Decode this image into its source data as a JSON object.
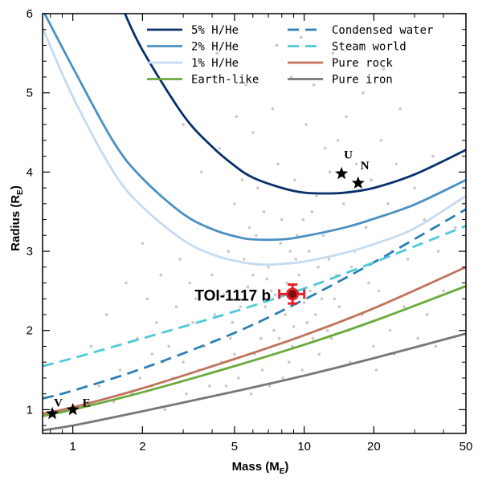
{
  "colors": {
    "h5": "#08306b",
    "h2": "#4a90c2",
    "h1": "#c6dbef",
    "earth": "#6aaa3c",
    "water": "#2a7fb5",
    "steam": "#4ec8d8",
    "rock": "#c0735a",
    "iron": "#777777",
    "background_points": "#c8c8c8",
    "planet": "#e8202a"
  },
  "chart_data": {
    "type": "line",
    "xlabel": "Mass (M",
    "xlabel_sub": "E",
    "xlabel_close": ")",
    "ylabel": "Radius (R",
    "ylabel_sub": "E",
    "ylabel_close": ")",
    "xscale": "log",
    "xlim": [
      0.74,
      50
    ],
    "ylim": [
      0.7,
      6
    ],
    "xticks": [
      1,
      2,
      5,
      10,
      20,
      50
    ],
    "xtick_labels": [
      "1",
      "2",
      "5",
      "10",
      "20",
      "50"
    ],
    "yticks": [
      1,
      2,
      3,
      4,
      5,
      6
    ],
    "ytick_labels": [
      "1",
      "2",
      "3",
      "4",
      "5",
      "6"
    ],
    "series": [
      {
        "name": "5% H/He",
        "style": "solid",
        "color_key": "h5",
        "x": [
          1.65,
          2,
          3,
          4,
          5,
          6,
          8,
          10,
          12.5,
          15,
          20,
          30,
          50
        ],
        "y": [
          6.05,
          5.54,
          4.72,
          4.32,
          4.08,
          3.93,
          3.8,
          3.74,
          3.73,
          3.74,
          3.8,
          3.97,
          4.28
        ]
      },
      {
        "name": "2% H/He",
        "style": "solid",
        "color_key": "h2",
        "x": [
          0.74,
          1,
          1.5,
          2,
          3,
          4,
          5,
          6,
          8,
          10,
          15,
          20,
          30,
          50
        ],
        "y": [
          6.05,
          5.32,
          4.38,
          3.92,
          3.47,
          3.28,
          3.19,
          3.15,
          3.15,
          3.19,
          3.3,
          3.41,
          3.59,
          3.9
        ]
      },
      {
        "name": "1% H/He",
        "style": "solid",
        "color_key": "h1",
        "x": [
          0.74,
          1,
          1.5,
          2,
          3,
          4,
          5,
          6,
          7,
          8,
          10,
          15,
          20,
          30,
          50
        ],
        "y": [
          5.82,
          4.95,
          4.0,
          3.56,
          3.14,
          2.96,
          2.88,
          2.84,
          2.83,
          2.84,
          2.87,
          2.98,
          3.09,
          3.29,
          3.7
        ]
      },
      {
        "name": "Earth-like",
        "style": "solid",
        "color_key": "earth",
        "x": [
          0.74,
          1,
          2,
          5,
          10,
          20,
          50
        ],
        "y": [
          0.92,
          1.0,
          1.22,
          1.55,
          1.82,
          2.12,
          2.56
        ]
      },
      {
        "name": "Condensed water",
        "style": "dashed",
        "color_key": "water",
        "x": [
          0.74,
          1,
          2,
          5,
          10,
          20,
          50
        ],
        "y": [
          1.14,
          1.24,
          1.52,
          1.97,
          2.39,
          2.86,
          3.53
        ]
      },
      {
        "name": "Steam world",
        "style": "dashed",
        "color_key": "steam",
        "x": [
          0.74,
          1,
          2,
          5,
          10,
          20,
          50
        ],
        "y": [
          1.55,
          1.65,
          1.9,
          2.24,
          2.53,
          2.86,
          3.32
        ]
      },
      {
        "name": "Pure rock",
        "style": "solid",
        "color_key": "rock",
        "x": [
          0.74,
          1,
          2,
          5,
          10,
          20,
          50
        ],
        "y": [
          0.95,
          1.03,
          1.27,
          1.64,
          1.94,
          2.28,
          2.8
        ]
      },
      {
        "name": "Pure iron",
        "style": "solid",
        "color_key": "iron",
        "x": [
          0.74,
          1,
          2,
          5,
          10,
          20,
          50
        ],
        "y": [
          0.74,
          0.8,
          0.98,
          1.23,
          1.43,
          1.65,
          1.96
        ]
      }
    ],
    "solar_system": [
      {
        "label": "V",
        "x": 0.815,
        "y": 0.95
      },
      {
        "label": "E",
        "x": 1.0,
        "y": 1.0
      },
      {
        "label": "U",
        "x": 14.5,
        "y": 3.98
      },
      {
        "label": "N",
        "x": 17.1,
        "y": 3.86
      }
    ],
    "highlight": {
      "label": "TOI-1117 b",
      "x": 8.9,
      "y": 2.46,
      "x_err": 1.1,
      "y_err": 0.12
    },
    "background_population": [
      [
        3.2,
        2.6
      ],
      [
        4.1,
        2.2
      ],
      [
        5.5,
        2.9
      ],
      [
        6.8,
        2.3
      ],
      [
        7.9,
        3.1
      ],
      [
        9.5,
        2.7
      ],
      [
        11.2,
        2.2
      ],
      [
        12.8,
        2.9
      ],
      [
        2.6,
        1.8
      ],
      [
        3.5,
        1.5
      ],
      [
        4.8,
        1.9
      ],
      [
        6.1,
        1.7
      ],
      [
        7.4,
        2.0
      ],
      [
        8.6,
        1.6
      ],
      [
        10.3,
        2.1
      ],
      [
        13.5,
        2.4
      ],
      [
        16.0,
        2.8
      ],
      [
        18.5,
        3.3
      ],
      [
        21.0,
        2.5
      ],
      [
        24.0,
        3.0
      ],
      [
        2.1,
        2.4
      ],
      [
        2.9,
        2.9
      ],
      [
        3.8,
        3.3
      ],
      [
        5.0,
        3.6
      ],
      [
        6.3,
        3.8
      ],
      [
        7.7,
        4.1
      ],
      [
        9.1,
        3.9
      ],
      [
        10.8,
        3.5
      ],
      [
        12.1,
        3.2
      ],
      [
        14.8,
        3.6
      ],
      [
        1.6,
        1.5
      ],
      [
        1.9,
        1.9
      ],
      [
        2.3,
        2.1
      ],
      [
        2.7,
        1.4
      ],
      [
        3.1,
        1.2
      ],
      [
        3.9,
        1.3
      ],
      [
        4.4,
        1.6
      ],
      [
        5.2,
        1.4
      ],
      [
        5.9,
        1.2
      ],
      [
        6.6,
        1.5
      ],
      [
        7.1,
        1.3
      ],
      [
        8.1,
        1.4
      ],
      [
        9.8,
        1.5
      ],
      [
        11.6,
        1.7
      ],
      [
        13.1,
        1.9
      ],
      [
        15.5,
        2.0
      ],
      [
        17.8,
        2.2
      ],
      [
        19.9,
        1.8
      ],
      [
        23.5,
        2.0
      ],
      [
        27.0,
        2.3
      ],
      [
        4.5,
        2.45
      ],
      [
        5.7,
        2.55
      ],
      [
        6.9,
        2.65
      ],
      [
        7.5,
        2.45
      ],
      [
        8.3,
        2.2
      ],
      [
        9.0,
        2.05
      ],
      [
        10.0,
        2.35
      ],
      [
        11.8,
        2.6
      ],
      [
        6.4,
        2.1
      ],
      [
        5.3,
        2.3
      ],
      [
        3.3,
        2.1
      ],
      [
        4.0,
        2.7
      ],
      [
        4.7,
        3.0
      ],
      [
        5.8,
        3.3
      ],
      [
        6.7,
        3.5
      ],
      [
        8.0,
        3.4
      ],
      [
        9.3,
        3.2
      ],
      [
        10.5,
        3.0
      ],
      [
        11.5,
        2.8
      ],
      [
        13.8,
        2.7
      ],
      [
        2.4,
        2.7
      ],
      [
        2.0,
        3.1
      ],
      [
        1.7,
        2.6
      ],
      [
        1.4,
        2.2
      ],
      [
        1.2,
        1.8
      ],
      [
        1.3,
        1.3
      ],
      [
        1.5,
        1.1
      ],
      [
        1.8,
        1.2
      ],
      [
        2.2,
        1.3
      ],
      [
        2.5,
        1.0
      ],
      [
        6.0,
        4.5
      ],
      [
        7.3,
        4.8
      ],
      [
        8.8,
        5.2
      ],
      [
        10.2,
        4.6
      ],
      [
        12.3,
        4.3
      ],
      [
        15.2,
        4.7
      ],
      [
        18.0,
        5.0
      ],
      [
        21.5,
        4.4
      ],
      [
        25.0,
        4.1
      ],
      [
        30.0,
        3.8
      ],
      [
        33.0,
        3.4
      ],
      [
        38.0,
        3.0
      ],
      [
        42.0,
        2.7
      ],
      [
        28.0,
        2.9
      ],
      [
        34.0,
        2.2
      ],
      [
        40.0,
        2.5
      ],
      [
        45.0,
        3.3
      ],
      [
        36.0,
        4.2
      ],
      [
        26.0,
        4.8
      ],
      [
        22.0,
        5.3
      ],
      [
        3.6,
        4.0
      ],
      [
        4.3,
        4.3
      ],
      [
        5.1,
        4.7
      ],
      [
        5.6,
        5.1
      ],
      [
        4.2,
        5.5
      ],
      [
        3.0,
        4.6
      ],
      [
        7.6,
        5.6
      ],
      [
        9.7,
        5.7
      ],
      [
        11.0,
        5.1
      ],
      [
        13.3,
        5.5
      ],
      [
        16.5,
        3.0
      ],
      [
        19.0,
        2.6
      ],
      [
        14.2,
        2.3
      ],
      [
        12.6,
        2.0
      ],
      [
        10.9,
        1.9
      ],
      [
        15.8,
        1.6
      ],
      [
        20.5,
        1.5
      ],
      [
        24.5,
        1.7
      ],
      [
        31.0,
        1.9
      ],
      [
        37.0,
        1.8
      ],
      [
        5.4,
        3.9
      ],
      [
        6.2,
        3.2
      ],
      [
        7.0,
        2.8
      ],
      [
        8.4,
        2.6
      ],
      [
        9.2,
        2.9
      ],
      [
        10.6,
        2.5
      ],
      [
        11.9,
        2.4
      ],
      [
        3.4,
        2.4
      ],
      [
        2.8,
        2.3
      ],
      [
        2.45,
        1.6
      ],
      [
        7.8,
        1.9
      ],
      [
        8.9,
        1.8
      ],
      [
        6.5,
        1.9
      ],
      [
        5.0,
        1.7
      ],
      [
        4.6,
        1.3
      ],
      [
        3.7,
        1.8
      ],
      [
        3.0,
        1.6
      ],
      [
        2.2,
        1.7
      ],
      [
        1.95,
        1.4
      ],
      [
        4.9,
        2.1
      ],
      [
        6.0,
        2.7
      ],
      [
        7.2,
        2.5
      ],
      [
        8.7,
        3.0
      ],
      [
        9.9,
        3.4
      ],
      [
        11.3,
        3.7
      ],
      [
        12.9,
        4.0
      ],
      [
        14.0,
        4.4
      ],
      [
        16.8,
        4.1
      ],
      [
        19.5,
        3.9
      ],
      [
        23.0,
        3.6
      ]
    ]
  }
}
